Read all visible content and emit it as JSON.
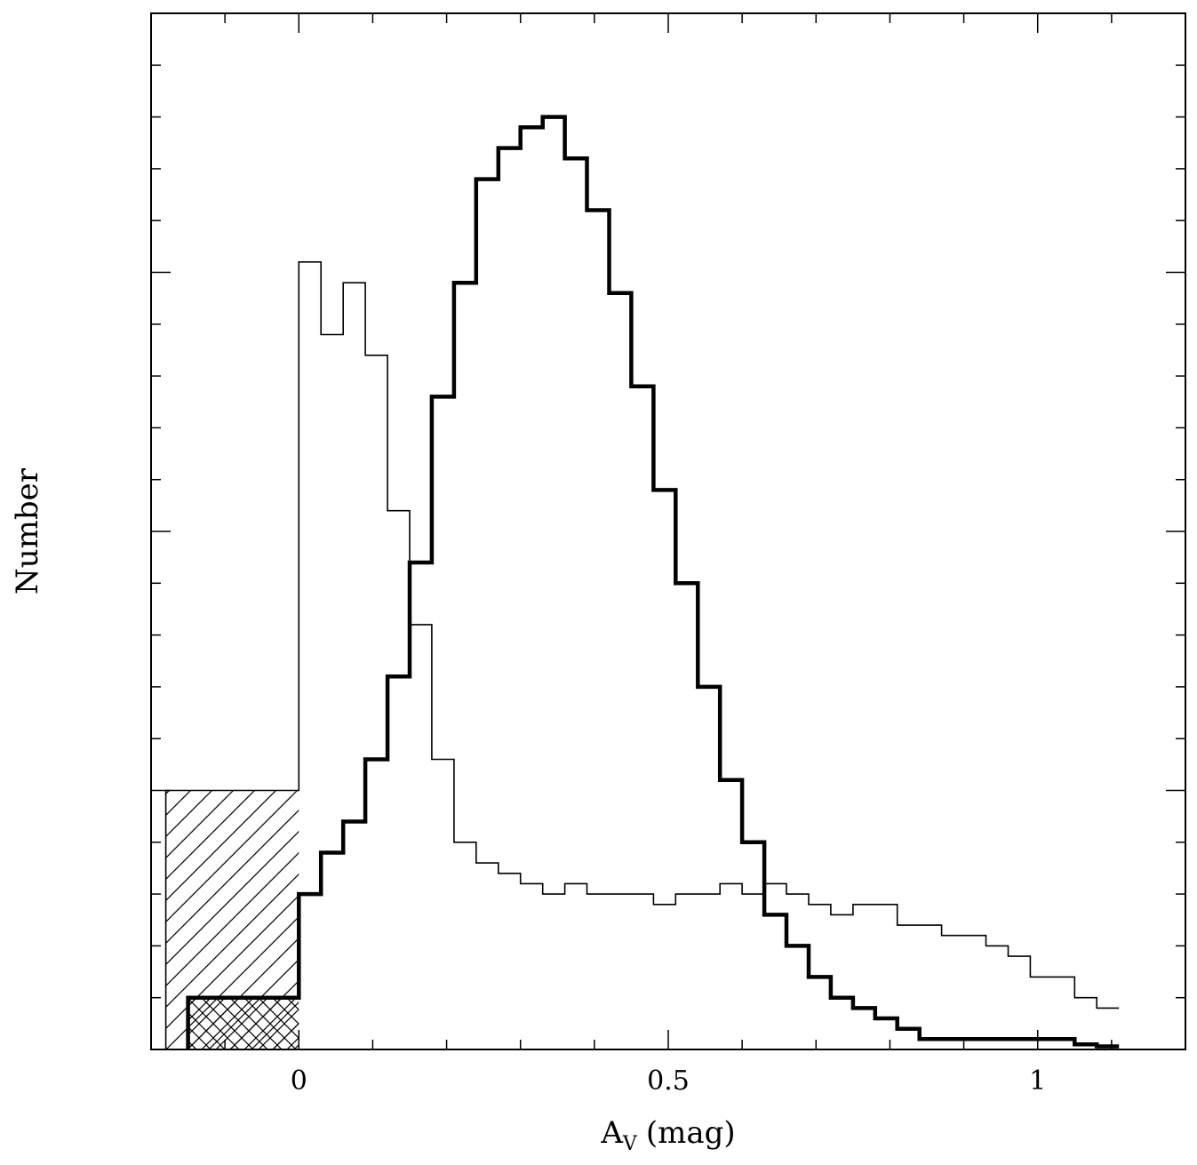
{
  "chart_data": {
    "type": "histogram",
    "xlabel_main": "A",
    "xlabel_sub": "V",
    "xlabel_unit": "(mag)",
    "ylabel": "Number",
    "xlim": [
      -0.2,
      1.2
    ],
    "ylim": [
      0,
      100
    ],
    "x_ticks": [
      0,
      0.5,
      1
    ],
    "x_tick_labels": [
      "0",
      "0.5",
      "1"
    ],
    "y_ticks_numbered": false,
    "bin_width": 0.03,
    "series": [
      {
        "style": "thin",
        "first_bin_start": -0.18,
        "values": [
          25,
          25,
          25,
          25,
          25,
          25,
          76,
          69,
          74,
          67,
          52,
          41,
          28,
          20,
          18,
          17,
          16,
          15,
          16,
          15,
          15,
          15,
          14,
          15,
          15,
          16,
          15,
          16,
          15,
          14,
          13,
          14,
          14,
          12,
          12,
          11,
          11,
          10,
          9,
          7,
          7,
          5,
          4
        ]
      },
      {
        "style": "thick",
        "first_bin_start": -0.15,
        "values": [
          5,
          5,
          5,
          5,
          5,
          15,
          19,
          22,
          28,
          36,
          47,
          63,
          74,
          84,
          87,
          89,
          90,
          86,
          81,
          73,
          64,
          54,
          45,
          35,
          26,
          20,
          13,
          10,
          7,
          5,
          4,
          3,
          2,
          1,
          1,
          1,
          1,
          1,
          1,
          1,
          0.5,
          0.3
        ]
      }
    ],
    "hatched_regions": [
      {
        "x_range": [
          -0.18,
          0.0
        ],
        "y_range": [
          0,
          25
        ],
        "pattern": "diagonal"
      },
      {
        "x_range": [
          -0.15,
          0.0
        ],
        "y_range": [
          0,
          5
        ],
        "pattern": "crosshatch"
      }
    ]
  }
}
